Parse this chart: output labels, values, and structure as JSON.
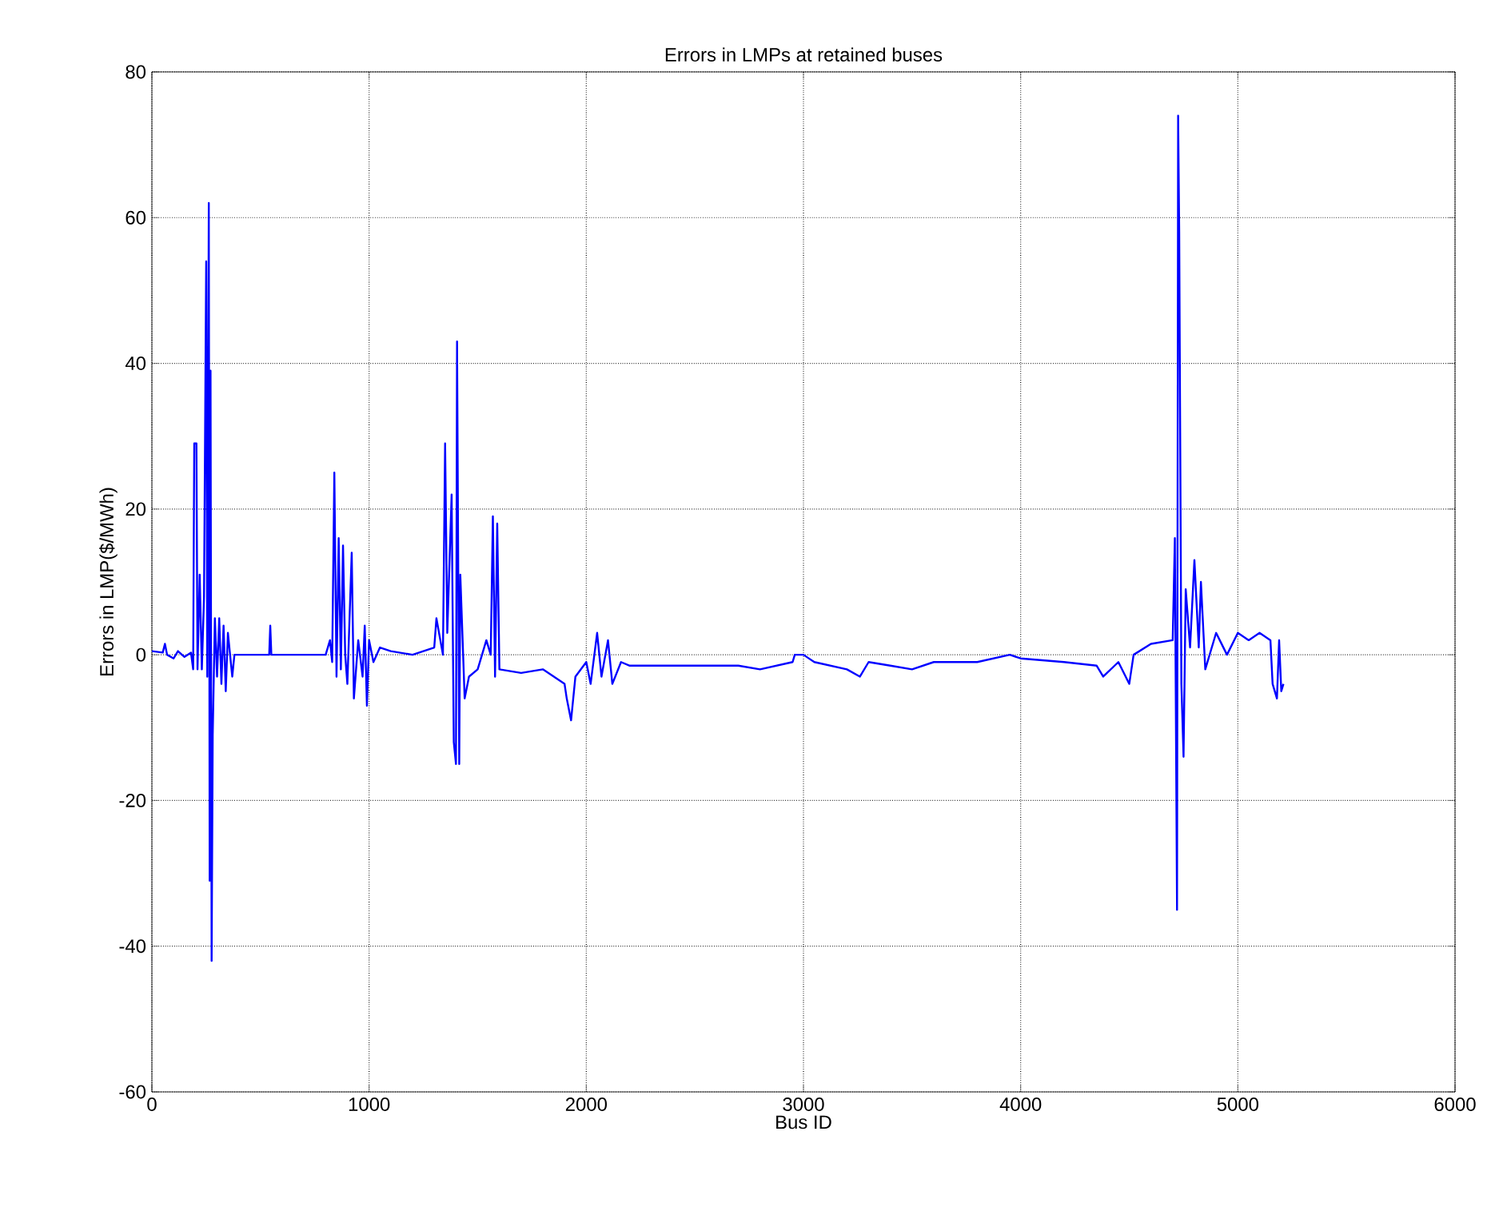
{
  "chart_data": {
    "type": "line",
    "title": "Errors in LMPs at retained buses",
    "xlabel": "Bus ID",
    "ylabel": "Errors in LMP($/MWh)",
    "xlim": [
      0,
      6000
    ],
    "ylim": [
      -60,
      80
    ],
    "xticks": [
      0,
      1000,
      2000,
      3000,
      4000,
      5000,
      6000
    ],
    "yticks": [
      -60,
      -40,
      -20,
      0,
      20,
      40,
      60,
      80
    ],
    "grid": true,
    "marker": "none",
    "line_style": "solid",
    "series": [
      {
        "color": "#0000ff",
        "x": [
          0,
          50,
          60,
          70,
          100,
          120,
          150,
          180,
          190,
          195,
          205,
          210,
          220,
          230,
          240,
          250,
          255,
          262,
          266,
          270,
          275,
          280,
          290,
          300,
          310,
          320,
          330,
          340,
          350,
          370,
          380,
          400,
          540,
          545,
          550,
          800,
          820,
          830,
          840,
          850,
          860,
          870,
          880,
          890,
          900,
          920,
          930,
          950,
          970,
          980,
          990,
          1000,
          1020,
          1050,
          1100,
          1200,
          1300,
          1310,
          1340,
          1350,
          1360,
          1380,
          1390,
          1400,
          1405,
          1415,
          1420,
          1440,
          1460,
          1500,
          1540,
          1560,
          1570,
          1580,
          1590,
          1600,
          1700,
          1800,
          1900,
          1910,
          1930,
          1950,
          2000,
          2020,
          2050,
          2070,
          2100,
          2120,
          2160,
          2200,
          2400,
          2500,
          2700,
          2800,
          2950,
          2960,
          3000,
          3050,
          3200,
          3260,
          3300,
          3400,
          3500,
          3600,
          3800,
          3950,
          4000,
          4200,
          4350,
          4380,
          4450,
          4500,
          4520,
          4600,
          4700,
          4710,
          4720,
          4725,
          4730,
          4740,
          4750,
          4760,
          4780,
          4800,
          4820,
          4830,
          4850,
          4900,
          4950,
          5000,
          5050,
          5100,
          5150,
          5160,
          5180,
          5190,
          5200,
          5210
        ],
        "values": [
          0.5,
          0.3,
          1.5,
          0,
          -0.5,
          0.5,
          -0.3,
          0.3,
          -2,
          29,
          29,
          -2,
          11,
          -2,
          8,
          54,
          -3,
          62,
          -31,
          39,
          -42,
          -11,
          5,
          -3,
          5,
          -4,
          4,
          -5,
          3,
          -3,
          0,
          0,
          0,
          4,
          0,
          0,
          2,
          -1,
          25,
          -3,
          16,
          -2,
          15,
          0,
          -4,
          14,
          -6,
          2,
          -3,
          4,
          -7,
          2,
          -1,
          1,
          0.5,
          0,
          1,
          5,
          0,
          29,
          3,
          22,
          -12,
          -15,
          43,
          -15,
          11,
          -6,
          -3,
          -2,
          2,
          0,
          19,
          -3,
          18,
          -2,
          -2.5,
          -2,
          -4,
          -6,
          -9,
          -3,
          -1,
          -4,
          3,
          -3,
          2,
          -4,
          -1,
          -1.5,
          -1.5,
          -1.5,
          -1.5,
          -2,
          -1,
          0,
          0,
          -1,
          -2,
          -3,
          -1,
          -1.5,
          -2,
          -1,
          -1,
          0,
          -0.5,
          -1,
          -1.5,
          -3,
          -1,
          -4,
          0,
          1.5,
          2,
          16,
          -35,
          74,
          58,
          -4,
          -14,
          9,
          1,
          13,
          1,
          10,
          -2,
          3,
          0,
          3,
          2,
          3,
          2,
          -4,
          -6,
          2,
          -5,
          -4
        ]
      }
    ]
  }
}
